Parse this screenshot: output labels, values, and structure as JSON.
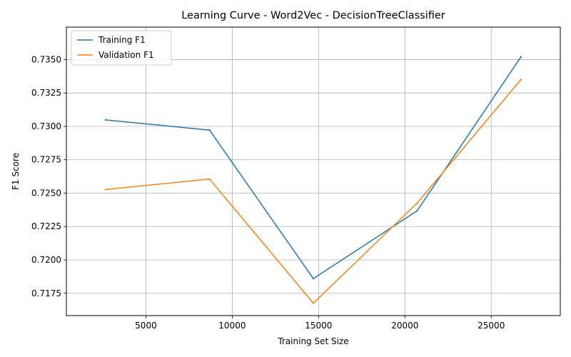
{
  "chart_data": {
    "type": "line",
    "title": "Learning Curve - Word2Vec - DecisionTreeClassifier",
    "xlabel": "Training Set Size",
    "ylabel": "F1 Score",
    "x": [
      2671,
      8684,
      14696,
      20708,
      26721
    ],
    "series": [
      {
        "name": "Training F1",
        "color": "#1f77b4",
        "values": [
          0.73048,
          0.72972,
          0.7186,
          0.72368,
          0.7352
        ]
      },
      {
        "name": "Validation F1",
        "color": "#ff7f0e",
        "values": [
          0.72527,
          0.72605,
          0.71676,
          0.72425,
          0.7335
        ]
      }
    ],
    "xlim": [
      393,
      28999
    ],
    "ylim": [
      0.71583,
      0.73743
    ],
    "xticks": [
      5000,
      10000,
      15000,
      20000,
      25000
    ],
    "xtick_labels": [
      "5000",
      "10000",
      "15000",
      "20000",
      "25000"
    ],
    "yticks": [
      0.7175,
      0.72,
      0.7225,
      0.725,
      0.7275,
      0.73,
      0.7325,
      0.735
    ],
    "ytick_labels": [
      "0.7175",
      "0.7200",
      "0.7225",
      "0.7250",
      "0.7275",
      "0.7300",
      "0.7325",
      "0.7350"
    ],
    "grid": true,
    "legend_position": "top-left"
  }
}
